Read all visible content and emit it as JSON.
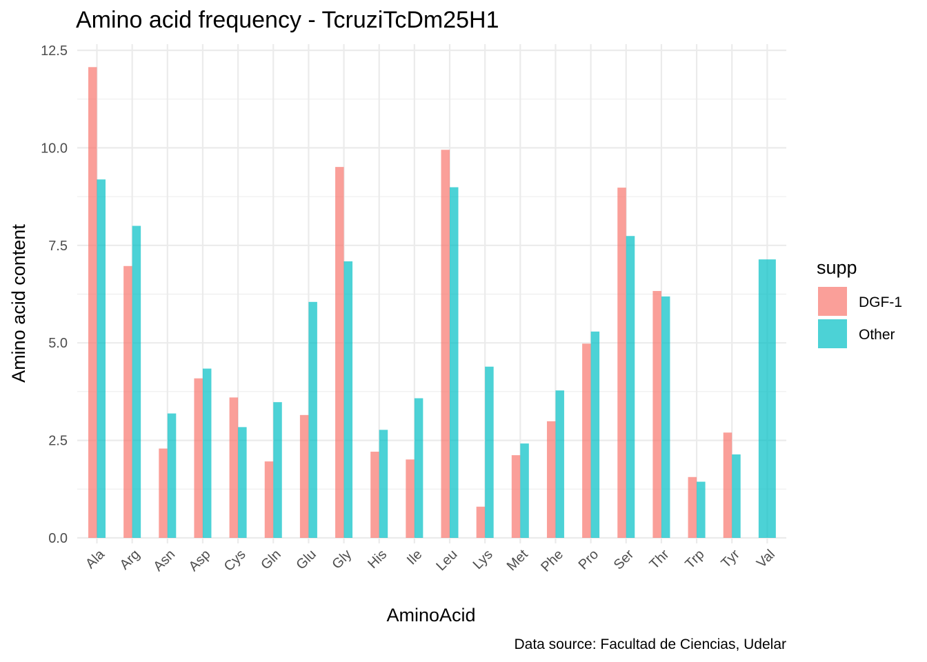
{
  "chart_data": {
    "type": "bar",
    "title": "Amino acid frequency - TcruziTcDm25H1",
    "xlabel": "AminoAcid",
    "ylabel": "Amino acid content",
    "caption": "Data source: Facultad de Ciencias, Udelar",
    "ylim": [
      0,
      12.5
    ],
    "yticks": [
      0.0,
      2.5,
      5.0,
      7.5,
      10.0,
      12.5
    ],
    "ytick_labels": [
      "0.0",
      "2.5",
      "5.0",
      "7.5",
      "10.0",
      "12.5"
    ],
    "categories": [
      "Ala",
      "Arg",
      "Asn",
      "Asp",
      "Cys",
      "Gln",
      "Glu",
      "Gly",
      "His",
      "Ile",
      "Leu",
      "Lys",
      "Met",
      "Phe",
      "Pro",
      "Ser",
      "Thr",
      "Trp",
      "Tyr",
      "Val"
    ],
    "legend": {
      "title": "supp",
      "position": "right"
    },
    "grid": true,
    "series": [
      {
        "name": "DGF-1",
        "color": "#F8766D",
        "values": [
          12.07,
          6.97,
          2.29,
          4.09,
          3.6,
          1.96,
          3.15,
          9.51,
          2.21,
          2.01,
          9.95,
          0.8,
          2.12,
          2.99,
          4.98,
          8.98,
          6.33,
          1.56,
          2.7,
          null
        ]
      },
      {
        "name": "Other",
        "color": "#00BFC4",
        "values": [
          9.19,
          8.0,
          3.19,
          4.34,
          2.84,
          3.48,
          6.05,
          7.09,
          2.77,
          3.58,
          8.99,
          4.39,
          2.42,
          3.78,
          5.29,
          7.74,
          6.19,
          1.44,
          2.14,
          7.14
        ]
      }
    ]
  }
}
